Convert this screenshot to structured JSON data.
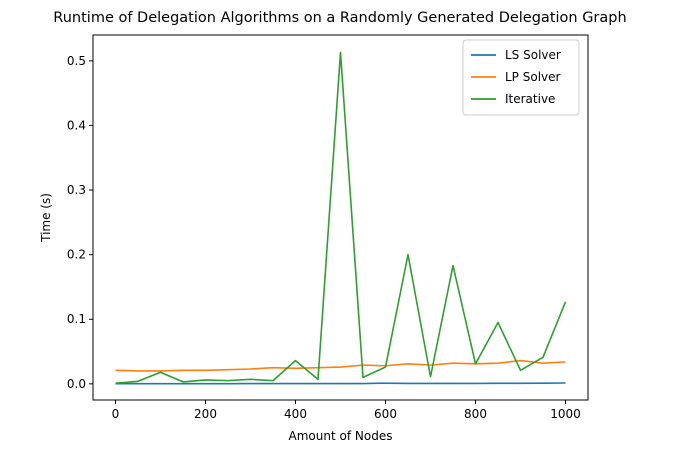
{
  "chart_data": {
    "type": "line",
    "title": "Runtime of Delegation Algorithms on a Randomly Generated Delegation Graph",
    "xlabel": "Amount of Nodes",
    "ylabel": "Time (s)",
    "xlim": [
      -50,
      1050
    ],
    "ylim": [
      -0.025,
      0.54
    ],
    "xticks": [
      0,
      200,
      400,
      600,
      800,
      1000
    ],
    "yticks": [
      0.0,
      0.1,
      0.2,
      0.3,
      0.4,
      0.5
    ],
    "xtick_labels": [
      "0",
      "200",
      "400",
      "600",
      "800",
      "1000"
    ],
    "ytick_labels": [
      "0.0",
      "0.1",
      "0.2",
      "0.3",
      "0.4",
      "0.5"
    ],
    "grid": false,
    "legend_position": "top-right",
    "x": [
      0,
      50,
      100,
      150,
      200,
      250,
      300,
      350,
      400,
      450,
      500,
      550,
      600,
      650,
      700,
      750,
      800,
      850,
      900,
      950,
      1000
    ],
    "series": [
      {
        "name": "LS Solver",
        "color": "#1f77b4",
        "values": [
          0.0002,
          0.0002,
          0.0002,
          0.0003,
          0.0003,
          0.0003,
          0.0004,
          0.0004,
          0.0004,
          0.0004,
          0.0004,
          0.0005,
          0.0011,
          0.0006,
          0.0006,
          0.0006,
          0.0007,
          0.0008,
          0.0009,
          0.0011,
          0.0013
        ]
      },
      {
        "name": "LP Solver",
        "color": "#ff7f0e",
        "values": [
          0.021,
          0.02,
          0.02,
          0.021,
          0.021,
          0.022,
          0.023,
          0.025,
          0.024,
          0.025,
          0.026,
          0.029,
          0.028,
          0.031,
          0.029,
          0.032,
          0.031,
          0.032,
          0.036,
          0.032,
          0.034
        ]
      },
      {
        "name": "Iterative",
        "color": "#2ca02c",
        "values": [
          0.001,
          0.004,
          0.018,
          0.003,
          0.006,
          0.005,
          0.007,
          0.005,
          0.036,
          0.007,
          0.513,
          0.01,
          0.026,
          0.2,
          0.011,
          0.183,
          0.031,
          0.095,
          0.021,
          0.041,
          0.127
        ]
      }
    ]
  }
}
